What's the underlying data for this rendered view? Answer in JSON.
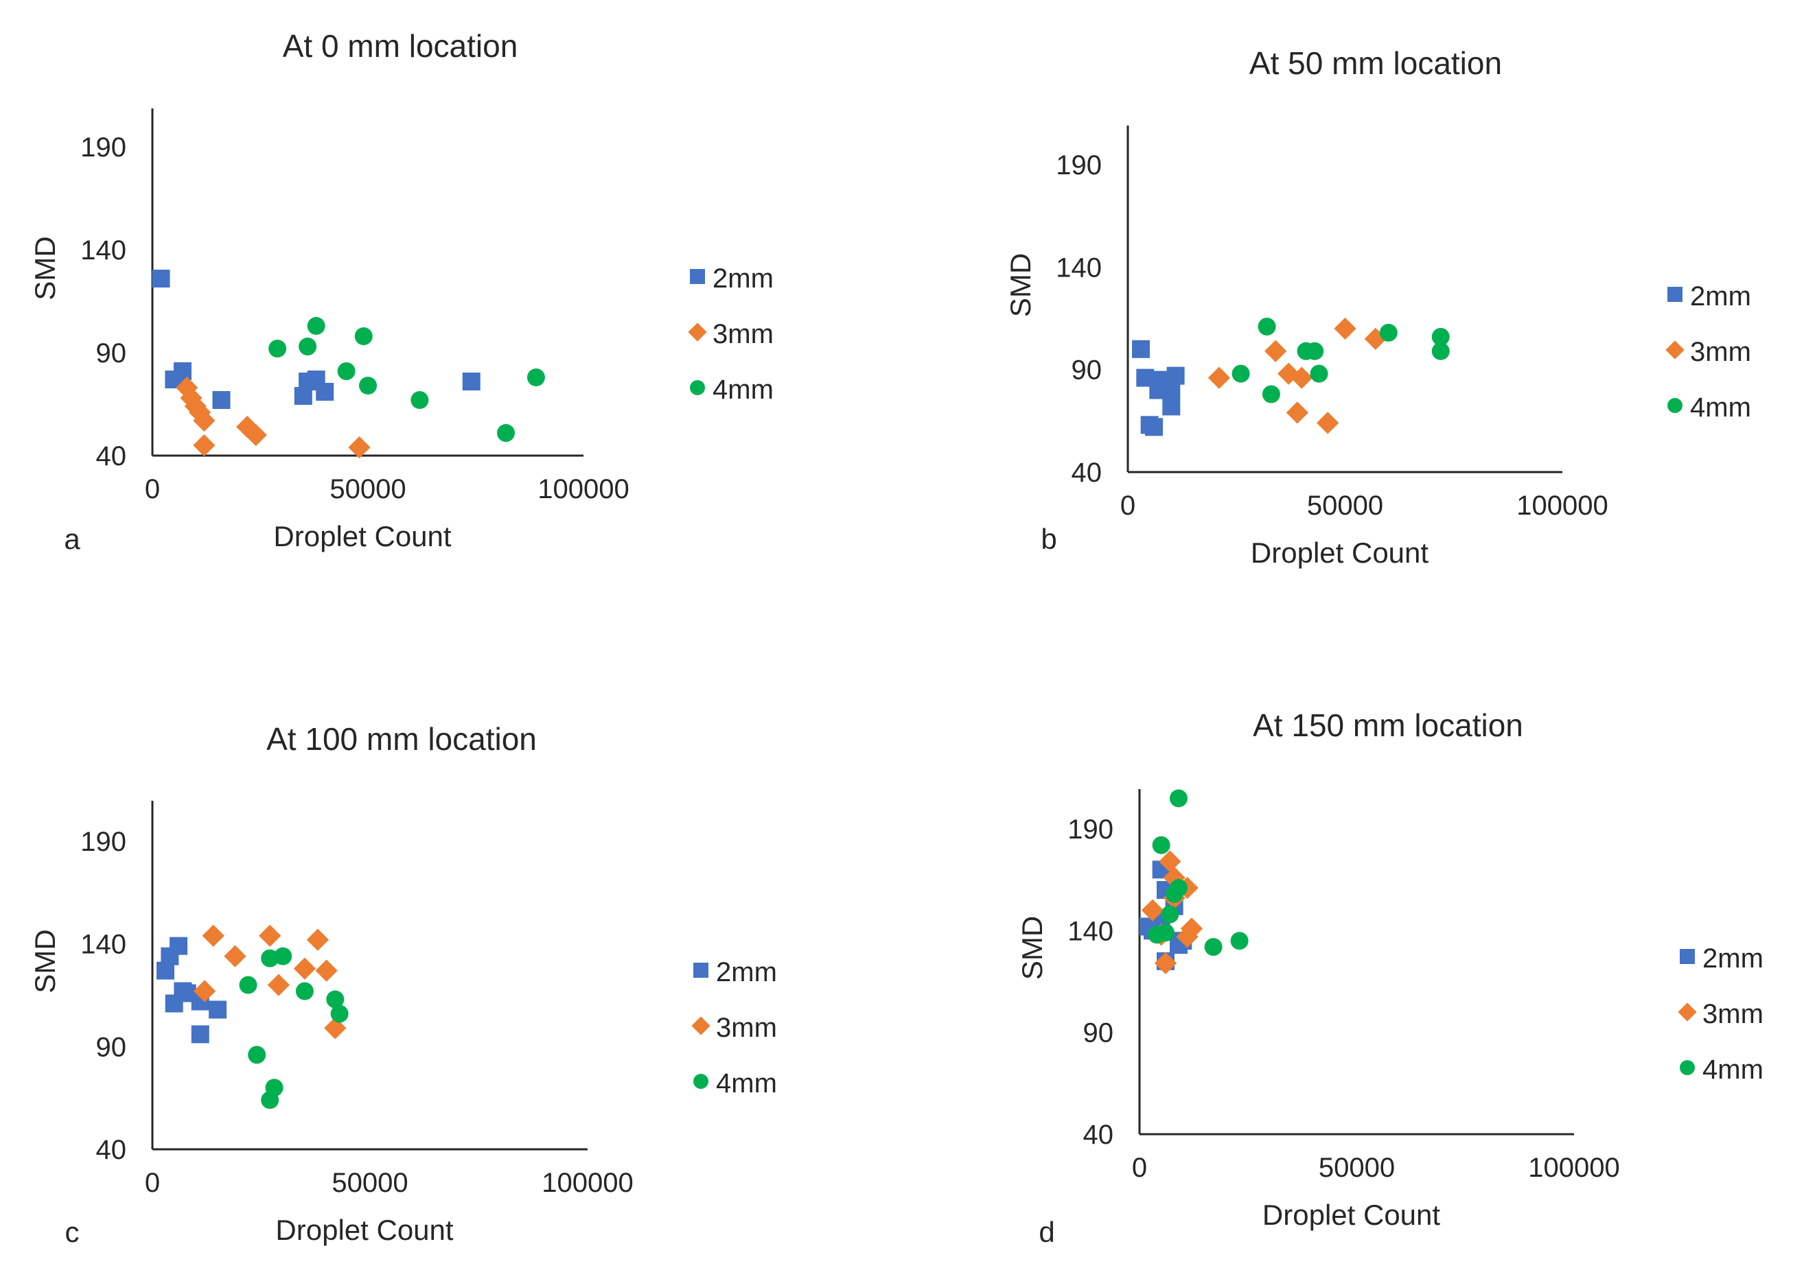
{
  "colors": {
    "2mm": "#4472C4",
    "3mm": "#ED7D31",
    "4mm": "#00B050",
    "axis": "#262626"
  },
  "chart_data": [
    {
      "type": "scatter",
      "panel_label": "a",
      "title": "At 0 mm location",
      "xlabel": "Droplet Count",
      "ylabel": "SMD",
      "xlim": [
        0,
        100000
      ],
      "ylim": [
        40,
        210
      ],
      "x_ticks": [
        "0",
        "50000",
        "100000"
      ],
      "y_ticks": [
        "190",
        "140",
        "90",
        "40"
      ],
      "legend_position": "right",
      "series": [
        {
          "name": "2mm",
          "marker": "square",
          "points": [
            [
              2000,
              126
            ],
            [
              5000,
              77
            ],
            [
              7000,
              81
            ],
            [
              16000,
              67
            ],
            [
              35000,
              69
            ],
            [
              36000,
              76
            ],
            [
              38000,
              77
            ],
            [
              40000,
              71
            ],
            [
              74000,
              76
            ]
          ]
        },
        {
          "name": "3mm",
          "marker": "diamond",
          "points": [
            [
              8000,
              73
            ],
            [
              9000,
              68
            ],
            [
              10000,
              64
            ],
            [
              11000,
              61
            ],
            [
              12000,
              57
            ],
            [
              12000,
              45
            ],
            [
              22000,
              54
            ],
            [
              24000,
              50
            ],
            [
              48000,
              44
            ]
          ]
        },
        {
          "name": "4mm",
          "marker": "circle",
          "points": [
            [
              29000,
              92
            ],
            [
              36000,
              93
            ],
            [
              38000,
              103
            ],
            [
              45000,
              81
            ],
            [
              49000,
              98
            ],
            [
              50000,
              74
            ],
            [
              62000,
              67
            ],
            [
              82000,
              51
            ],
            [
              89000,
              78
            ]
          ]
        }
      ]
    },
    {
      "type": "scatter",
      "panel_label": "b",
      "title": "At 50 mm location",
      "xlabel": "Droplet Count",
      "ylabel": "SMD",
      "xlim": [
        0,
        100000
      ],
      "ylim": [
        40,
        210
      ],
      "x_ticks": [
        "0",
        "50000",
        "100000"
      ],
      "y_ticks": [
        "190",
        "140",
        "90",
        "40"
      ],
      "legend_position": "right",
      "series": [
        {
          "name": "2mm",
          "marker": "square",
          "points": [
            [
              3000,
              100
            ],
            [
              4000,
              86
            ],
            [
              5000,
              63
            ],
            [
              6000,
              62
            ],
            [
              7000,
              80
            ],
            [
              8000,
              85
            ],
            [
              9000,
              81
            ],
            [
              10000,
              72
            ],
            [
              10000,
              80
            ],
            [
              11000,
              87
            ]
          ]
        },
        {
          "name": "3mm",
          "marker": "diamond",
          "points": [
            [
              21000,
              86
            ],
            [
              34000,
              99
            ],
            [
              37000,
              88
            ],
            [
              39000,
              69
            ],
            [
              40000,
              86
            ],
            [
              46000,
              64
            ],
            [
              50000,
              110
            ],
            [
              57000,
              105
            ]
          ]
        },
        {
          "name": "4mm",
          "marker": "circle",
          "points": [
            [
              26000,
              88
            ],
            [
              32000,
              111
            ],
            [
              33000,
              78
            ],
            [
              41000,
              99
            ],
            [
              43000,
              99
            ],
            [
              44000,
              88
            ],
            [
              60000,
              108
            ],
            [
              72000,
              106
            ],
            [
              72000,
              99
            ]
          ]
        }
      ]
    },
    {
      "type": "scatter",
      "panel_label": "c",
      "title": "At 100 mm location",
      "xlabel": "Droplet Count",
      "ylabel": "SMD",
      "xlim": [
        0,
        100000
      ],
      "ylim": [
        40,
        210
      ],
      "x_ticks": [
        "0",
        "50000",
        "100000"
      ],
      "y_ticks": [
        "190",
        "140",
        "90",
        "40"
      ],
      "legend_position": "right",
      "series": [
        {
          "name": "2mm",
          "marker": "square",
          "points": [
            [
              3000,
              127
            ],
            [
              4000,
              134
            ],
            [
              5000,
              111
            ],
            [
              6000,
              139
            ],
            [
              7000,
              117
            ],
            [
              8000,
              116
            ],
            [
              11000,
              112
            ],
            [
              11000,
              96
            ],
            [
              15000,
              108
            ]
          ]
        },
        {
          "name": "3mm",
          "marker": "diamond",
          "points": [
            [
              12000,
              117
            ],
            [
              14000,
              144
            ],
            [
              19000,
              134
            ],
            [
              27000,
              144
            ],
            [
              29000,
              120
            ],
            [
              35000,
              128
            ],
            [
              38000,
              142
            ],
            [
              40000,
              127
            ],
            [
              42000,
              99
            ]
          ]
        },
        {
          "name": "4mm",
          "marker": "circle",
          "points": [
            [
              22000,
              120
            ],
            [
              24000,
              86
            ],
            [
              27000,
              133
            ],
            [
              27000,
              64
            ],
            [
              28000,
              70
            ],
            [
              30000,
              134
            ],
            [
              35000,
              117
            ],
            [
              42000,
              113
            ],
            [
              43000,
              106
            ]
          ]
        }
      ]
    },
    {
      "type": "scatter",
      "panel_label": "d",
      "title": "At 150 mm location",
      "xlabel": "Droplet Count",
      "ylabel": "SMD",
      "xlim": [
        0,
        100000
      ],
      "ylim": [
        40,
        210
      ],
      "x_ticks": [
        "0",
        "50000",
        "100000"
      ],
      "y_ticks": [
        "190",
        "140",
        "90",
        "40"
      ],
      "legend_position": "right",
      "series": [
        {
          "name": "2mm",
          "marker": "square",
          "points": [
            [
              2000,
              142
            ],
            [
              3000,
              140
            ],
            [
              5000,
              145
            ],
            [
              5000,
              170
            ],
            [
              6000,
              160
            ],
            [
              6000,
              125
            ],
            [
              8000,
              152
            ],
            [
              9000,
              133
            ],
            [
              10000,
              135
            ]
          ]
        },
        {
          "name": "3mm",
          "marker": "diamond",
          "points": [
            [
              3000,
              150
            ],
            [
              5000,
              138
            ],
            [
              6000,
              124
            ],
            [
              7000,
              174
            ],
            [
              8000,
              166
            ],
            [
              8000,
              156
            ],
            [
              11000,
              137
            ],
            [
              11000,
              161
            ],
            [
              12000,
              141
            ]
          ]
        },
        {
          "name": "4mm",
          "marker": "circle",
          "points": [
            [
              4000,
              138
            ],
            [
              5000,
              182
            ],
            [
              6000,
              139
            ],
            [
              7000,
              148
            ],
            [
              8000,
              158
            ],
            [
              9000,
              161
            ],
            [
              9000,
              205
            ],
            [
              17000,
              132
            ],
            [
              23000,
              135
            ]
          ]
        }
      ]
    }
  ]
}
